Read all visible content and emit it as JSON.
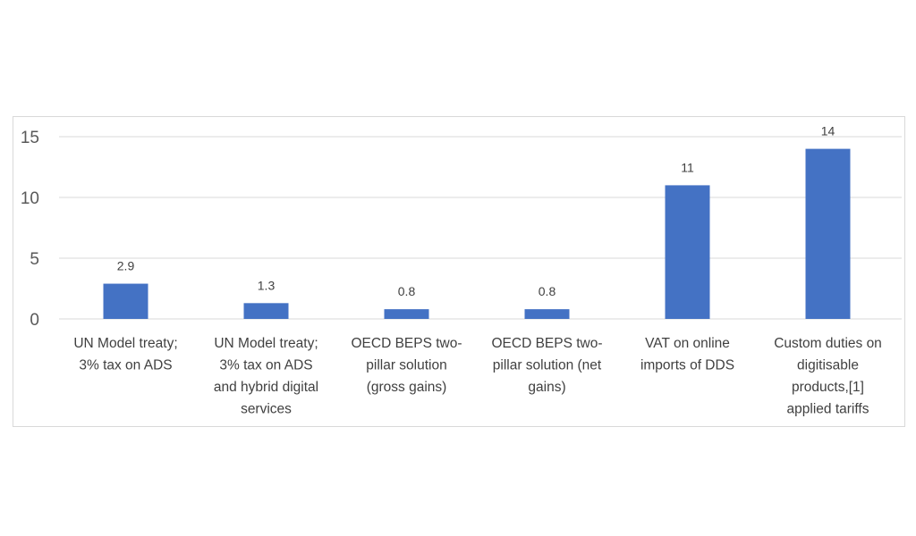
{
  "chart_data": {
    "type": "bar",
    "categories": [
      [
        "UN Model treaty;",
        "3% tax on ADS"
      ],
      [
        "UN Model treaty;",
        "3% tax on ADS",
        "and hybrid digital",
        "services"
      ],
      [
        "OECD BEPS two-",
        "pillar solution",
        "(gross gains)"
      ],
      [
        "OECD BEPS two-",
        "pillar solution (net",
        "gains)"
      ],
      [
        "VAT on online",
        "imports of DDS"
      ],
      [
        "Custom duties on",
        "digitisable",
        "products,[1]",
        "applied tariffs"
      ]
    ],
    "values": [
      2.9,
      1.3,
      0.8,
      0.8,
      11,
      14
    ],
    "data_labels": [
      "2.9",
      "1.3",
      "0.8",
      "0.8",
      "11",
      "14"
    ],
    "y_ticks": [
      0,
      5,
      10,
      15
    ],
    "ylim": [
      0,
      15
    ],
    "grid": true,
    "legend": "none",
    "colors": {
      "bar": "#4472C4",
      "grid": "#d9d9d9",
      "axis": "#d9d9d9"
    }
  }
}
